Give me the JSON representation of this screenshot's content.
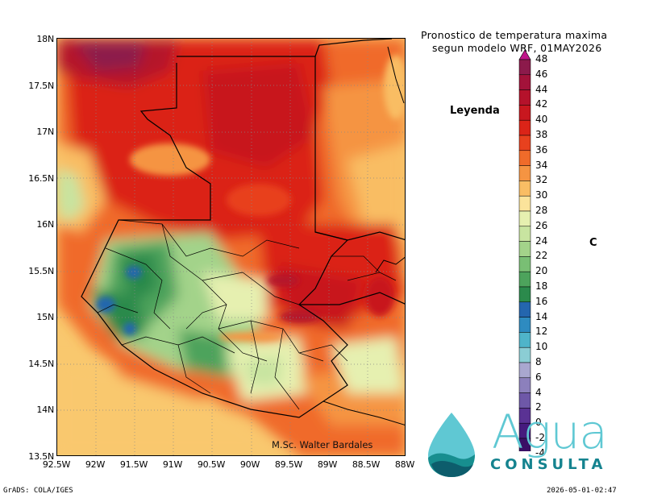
{
  "title": {
    "line1": "Pronostico de temperatura maxima",
    "line2": "segun modelo WRF, 01MAY2026"
  },
  "legend": {
    "heading": "Leyenda",
    "unit": "C",
    "levels": [
      48,
      46,
      44,
      42,
      40,
      38,
      36,
      34,
      32,
      30,
      28,
      26,
      24,
      22,
      20,
      18,
      16,
      14,
      12,
      10,
      8,
      6,
      4,
      2,
      0,
      -2,
      -4
    ],
    "colors": [
      "#8c1a4b",
      "#a3123a",
      "#b5122b",
      "#c8171f",
      "#db2418",
      "#e8411e",
      "#f06b2a",
      "#f59442",
      "#f9bd64",
      "#fbe39b",
      "#e6f0b0",
      "#c8e4a0",
      "#a3d38a",
      "#79bf74",
      "#4da35c",
      "#2b8a4c",
      "#2466ae",
      "#2e8bc0",
      "#4fb4c9",
      "#8bcdd4",
      "#a9a7cf",
      "#8c80bc",
      "#6e58a8",
      "#5a3294",
      "#461b7e",
      "#3a1066",
      "#a0a0a0"
    ]
  },
  "axes": {
    "y_labels": [
      "18N",
      "17.5N",
      "17N",
      "16.5N",
      "16N",
      "15.5N",
      "15N",
      "14.5N",
      "14N",
      "13.5N"
    ],
    "x_labels": [
      "92.5W",
      "92W",
      "91.5W",
      "91W",
      "90.5W",
      "90W",
      "89.5W",
      "89W",
      "88.5W",
      "88W"
    ]
  },
  "author": "M.Sc. Walter Bardales",
  "footer": {
    "left": "GrADS: COLA/IGES",
    "right": "2026-05-01-02:47"
  },
  "logo": {
    "word": "Agua",
    "sub": "CONSULTA"
  },
  "colors": {
    "hot": "#db2418",
    "cool": "#2b8a4c",
    "ocean": "#f9c86e"
  }
}
